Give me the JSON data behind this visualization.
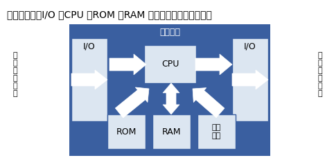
{
  "title": "マイコンは、I/O 、CPU 、ROM 、RAM 、周辺回路で構成される",
  "bg_color": "#ffffff",
  "maicon_bg": "#3a5fa0",
  "maicon_label": "マイコン",
  "io_box_color": "#dce6f1",
  "io_box_edge": "#3a5fa0",
  "arrow_color": "#ffffff",
  "left_io_label": "I/O",
  "right_io_label": "I/O",
  "cpu_label": "CPU",
  "rom_label": "ROM",
  "ram_label": "RAM",
  "periph_label": "周辺\n回路",
  "left_side_label": [
    "何",
    "ら",
    "か",
    "の",
    "入",
    "力"
  ],
  "right_side_label": [
    "何",
    "ら",
    "か",
    "の",
    "出",
    "力"
  ],
  "title_fontsize": 10,
  "label_fontsize": 9,
  "small_fontsize": 8
}
